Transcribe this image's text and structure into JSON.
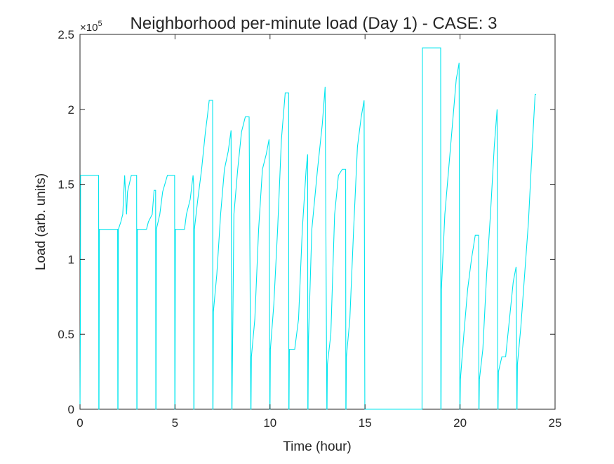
{
  "chart_data": {
    "type": "line",
    "title": "Neighborhood per-minute load (Day 1) - CASE: 3",
    "xlabel": "Time (hour)",
    "ylabel": "Load (arb. units)",
    "xlim": [
      0,
      25
    ],
    "ylim": [
      0,
      2.5
    ],
    "y_scale_exponent": "×10",
    "y_scale_exponent_power": "5",
    "xticks": [
      0,
      5,
      10,
      15,
      20,
      25
    ],
    "xtick_labels": [
      "0",
      "5",
      "10",
      "15",
      "20",
      "25"
    ],
    "yticks": [
      0,
      0.5,
      1,
      1.5,
      2,
      2.5
    ],
    "ytick_labels": [
      "0",
      "0.5",
      "1",
      "1.5",
      "2",
      "2.5"
    ],
    "grid": false,
    "line_color": "#00e5ee",
    "series": [
      {
        "points": [
          [
            0,
            0
          ],
          [
            0.02,
            0.6
          ],
          [
            0.03,
            1.56
          ],
          [
            0.98,
            1.56
          ],
          [
            0.99,
            0
          ],
          [
            1.0,
            0
          ],
          [
            1.02,
            1.2
          ],
          [
            1.98,
            1.2
          ],
          [
            1.99,
            0
          ],
          [
            2.0,
            0
          ],
          [
            2.02,
            1.2
          ],
          [
            2.15,
            1.25
          ],
          [
            2.25,
            1.3
          ],
          [
            2.35,
            1.56
          ],
          [
            2.45,
            1.3
          ],
          [
            2.5,
            1.45
          ],
          [
            2.7,
            1.56
          ],
          [
            2.98,
            1.56
          ],
          [
            2.99,
            0
          ],
          [
            3.0,
            0
          ],
          [
            3.02,
            1.2
          ],
          [
            3.5,
            1.2
          ],
          [
            3.6,
            1.25
          ],
          [
            3.8,
            1.3
          ],
          [
            3.9,
            1.46
          ],
          [
            3.98,
            1.46
          ],
          [
            3.99,
            0
          ],
          [
            4.0,
            0
          ],
          [
            4.02,
            1.2
          ],
          [
            4.2,
            1.3
          ],
          [
            4.35,
            1.45
          ],
          [
            4.6,
            1.56
          ],
          [
            4.98,
            1.56
          ],
          [
            4.99,
            0
          ],
          [
            5.0,
            0
          ],
          [
            5.02,
            1.2
          ],
          [
            5.5,
            1.2
          ],
          [
            5.6,
            1.3
          ],
          [
            5.8,
            1.4
          ],
          [
            5.95,
            1.56
          ],
          [
            5.98,
            1.5
          ],
          [
            5.99,
            0
          ],
          [
            6.0,
            0
          ],
          [
            6.02,
            1.2
          ],
          [
            6.2,
            1.4
          ],
          [
            6.4,
            1.6
          ],
          [
            6.6,
            1.85
          ],
          [
            6.7,
            1.95
          ],
          [
            6.8,
            2.06
          ],
          [
            6.98,
            2.06
          ],
          [
            6.99,
            0
          ],
          [
            7.0,
            0
          ],
          [
            7.02,
            0.65
          ],
          [
            7.2,
            0.9
          ],
          [
            7.4,
            1.3
          ],
          [
            7.6,
            1.6
          ],
          [
            7.8,
            1.72
          ],
          [
            7.95,
            1.86
          ],
          [
            7.99,
            0
          ],
          [
            8.0,
            0
          ],
          [
            8.02,
            0.3
          ],
          [
            8.1,
            1.3
          ],
          [
            8.3,
            1.6
          ],
          [
            8.5,
            1.85
          ],
          [
            8.7,
            1.95
          ],
          [
            8.9,
            1.95
          ],
          [
            8.99,
            0
          ],
          [
            9.0,
            0
          ],
          [
            9.02,
            0.35
          ],
          [
            9.2,
            0.6
          ],
          [
            9.4,
            1.2
          ],
          [
            9.6,
            1.6
          ],
          [
            9.8,
            1.7
          ],
          [
            9.95,
            1.8
          ],
          [
            9.99,
            0
          ],
          [
            10.0,
            0
          ],
          [
            10.02,
            0.4
          ],
          [
            10.2,
            0.7
          ],
          [
            10.4,
            1.2
          ],
          [
            10.6,
            1.8
          ],
          [
            10.8,
            2.11
          ],
          [
            10.98,
            2.11
          ],
          [
            10.99,
            0
          ],
          [
            11.0,
            0
          ],
          [
            11.02,
            0.4
          ],
          [
            11.3,
            0.4
          ],
          [
            11.5,
            0.6
          ],
          [
            11.7,
            1.2
          ],
          [
            11.9,
            1.6
          ],
          [
            11.98,
            1.7
          ],
          [
            11.99,
            0
          ],
          [
            12.0,
            0
          ],
          [
            12.02,
            0.45
          ],
          [
            12.2,
            1.2
          ],
          [
            12.5,
            1.6
          ],
          [
            12.75,
            1.9
          ],
          [
            12.9,
            2.15
          ],
          [
            12.99,
            0
          ],
          [
            13.0,
            0
          ],
          [
            13.02,
            0.3
          ],
          [
            13.2,
            0.5
          ],
          [
            13.4,
            1.3
          ],
          [
            13.6,
            1.56
          ],
          [
            13.8,
            1.6
          ],
          [
            13.98,
            1.6
          ],
          [
            13.99,
            0
          ],
          [
            14.0,
            0
          ],
          [
            14.02,
            0.35
          ],
          [
            14.2,
            0.6
          ],
          [
            14.4,
            1.2
          ],
          [
            14.6,
            1.75
          ],
          [
            14.8,
            1.95
          ],
          [
            14.95,
            2.06
          ],
          [
            14.99,
            0
          ],
          [
            15.0,
            0
          ],
          [
            17.98,
            0
          ],
          [
            17.99,
            0
          ],
          [
            18.0,
            0
          ],
          [
            18.02,
            2.41
          ],
          [
            18.98,
            2.41
          ],
          [
            18.99,
            0
          ],
          [
            19.0,
            0
          ],
          [
            19.02,
            0.8
          ],
          [
            19.2,
            1.3
          ],
          [
            19.4,
            1.6
          ],
          [
            19.6,
            1.9
          ],
          [
            19.8,
            2.2
          ],
          [
            19.95,
            2.31
          ],
          [
            19.99,
            0
          ],
          [
            20.0,
            0
          ],
          [
            20.02,
            0.2
          ],
          [
            20.2,
            0.5
          ],
          [
            20.4,
            0.8
          ],
          [
            20.6,
            1.0
          ],
          [
            20.8,
            1.16
          ],
          [
            20.98,
            1.16
          ],
          [
            20.99,
            0
          ],
          [
            21.0,
            0
          ],
          [
            21.02,
            0.2
          ],
          [
            21.2,
            0.4
          ],
          [
            21.4,
            0.9
          ],
          [
            21.6,
            1.3
          ],
          [
            21.8,
            1.75
          ],
          [
            21.95,
            2.0
          ],
          [
            21.99,
            0
          ],
          [
            22.0,
            0
          ],
          [
            22.02,
            0.25
          ],
          [
            22.2,
            0.35
          ],
          [
            22.4,
            0.35
          ],
          [
            22.6,
            0.6
          ],
          [
            22.8,
            0.85
          ],
          [
            22.95,
            0.95
          ],
          [
            22.99,
            0
          ],
          [
            23.0,
            0
          ],
          [
            23.02,
            0.3
          ],
          [
            23.2,
            0.55
          ],
          [
            23.4,
            0.9
          ],
          [
            23.6,
            1.25
          ],
          [
            23.8,
            1.75
          ],
          [
            23.95,
            2.1
          ],
          [
            24.0,
            2.1
          ]
        ]
      }
    ]
  }
}
